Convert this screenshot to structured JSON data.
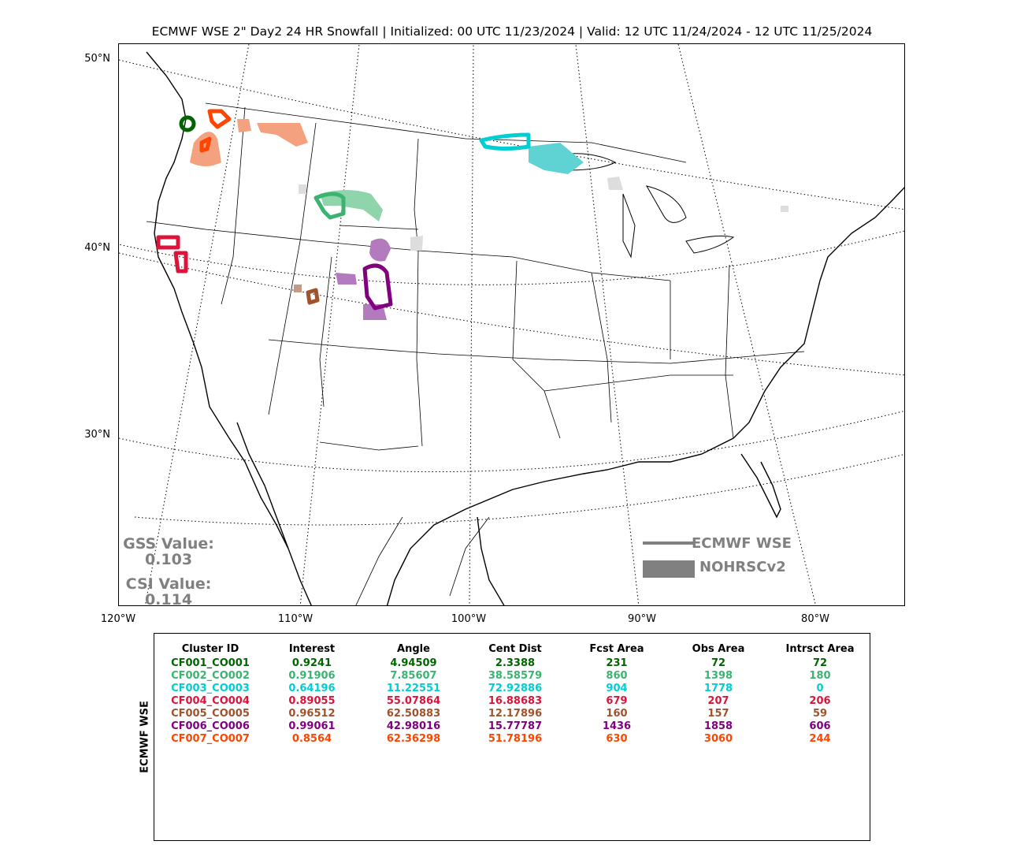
{
  "title": "ECMWF WSE 2\" Day2 24 HR Snowfall | Initialized: 00 UTC 11/23/2024 | Valid: 12 UTC 11/24/2024 - 12 UTC 11/25/2024",
  "lat_labels": [
    "50°N",
    "40°N",
    "30°N"
  ],
  "lon_labels": [
    "120°W",
    "110°W",
    "100°W",
    "90°W",
    "80°W"
  ],
  "scores": {
    "gss_label": "GSS Value:",
    "gss_value": "0.103",
    "csi_label": "CSI Value:",
    "csi_value": "0.114"
  },
  "legend": {
    "forecast_label": "ECMWF WSE",
    "observed_label": "NOHRSCv2",
    "color": "#808080"
  },
  "table": {
    "side_label": "ECMWF WSE",
    "headers": [
      "Cluster ID",
      "Interest",
      "Angle",
      "Cent Dist",
      "Fcst Area",
      "Obs Area",
      "Intrsct Area"
    ],
    "rows": [
      {
        "color": "#006400",
        "cells": [
          "CF001_CO001",
          "0.9241",
          "4.94509",
          "2.3388",
          "231",
          "72",
          "72"
        ]
      },
      {
        "color": "#3cb371",
        "cells": [
          "CF002_CO002",
          "0.91906",
          "7.85607",
          "38.58579",
          "860",
          "1398",
          "180"
        ]
      },
      {
        "color": "#00ced1",
        "cells": [
          "CF003_CO003",
          "0.64196",
          "11.22551",
          "72.92886",
          "904",
          "1778",
          "0"
        ]
      },
      {
        "color": "#dc143c",
        "cells": [
          "CF004_CO004",
          "0.89055",
          "55.07864",
          "16.88683",
          "679",
          "207",
          "206"
        ]
      },
      {
        "color": "#a0522d",
        "cells": [
          "CF005_CO005",
          "0.96512",
          "62.50883",
          "12.17896",
          "160",
          "157",
          "59"
        ]
      },
      {
        "color": "#800080",
        "cells": [
          "CF006_CO006",
          "0.99061",
          "42.98016",
          "15.77787",
          "1436",
          "1858",
          "606"
        ]
      },
      {
        "color": "#ff4500",
        "cells": [
          "CF007_CO007",
          "0.8564",
          "62.36298",
          "51.78196",
          "630",
          "3060",
          "244"
        ]
      }
    ]
  }
}
